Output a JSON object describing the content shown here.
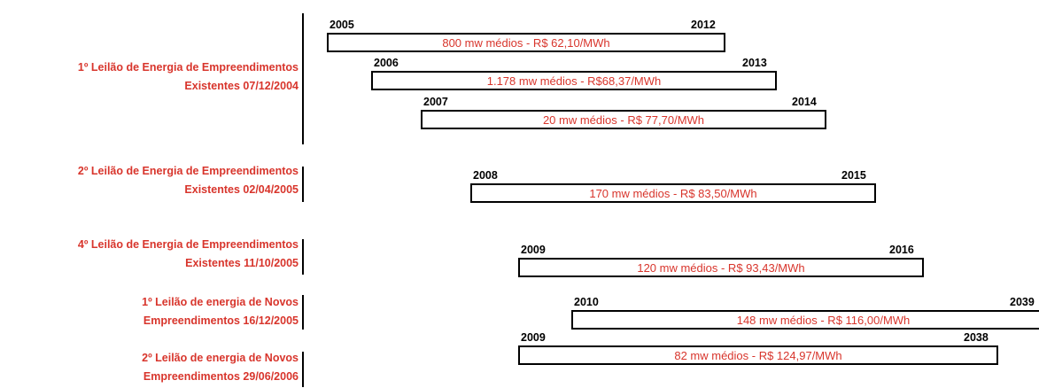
{
  "groups": [
    {
      "label": [
        "1º Leilão de Energia de Empreendimentos",
        "Existentes 07/12/2004"
      ],
      "bars": [
        {
          "start": "2005",
          "end": "2012",
          "text": "800 mw médios - R$ 62,10/MWh"
        },
        {
          "start": "2006",
          "end": "2013",
          "text": "1.178  mw médios  - R$68,37/MWh"
        },
        {
          "start": "2007",
          "end": "2014",
          "text": "20 mw médios  - R$ 77,70/MWh"
        }
      ]
    },
    {
      "label": [
        "2º Leilão de Energia de Empreendimentos",
        "Existentes 02/04/2005"
      ],
      "bars": [
        {
          "start": "2008",
          "end": "2015",
          "text": "170 mw médios  - R$ 83,50/MWh"
        }
      ]
    },
    {
      "label": [
        "4º Leilão de Energia de Empreendimentos",
        "Existentes 11/10/2005"
      ],
      "bars": [
        {
          "start": "2009",
          "end": "2016",
          "text": "120 mw médios - R$ 93,43/MWh"
        }
      ]
    },
    {
      "label": [
        "1º Leilão de energia de Novos",
        "Empreendimentos 16/12/2005"
      ],
      "bars": [
        {
          "start": "2010",
          "end": "2039",
          "text": "148 mw médios - R$ 116,00/MWh"
        }
      ]
    },
    {
      "label": [
        "2º Leilão de energia de Novos",
        "Empreendimentos 29/06/2006"
      ],
      "bars": [
        {
          "start": "2009",
          "end": "2038",
          "text": "82 mw médios - R$ 124,97/MWh"
        }
      ]
    }
  ]
}
